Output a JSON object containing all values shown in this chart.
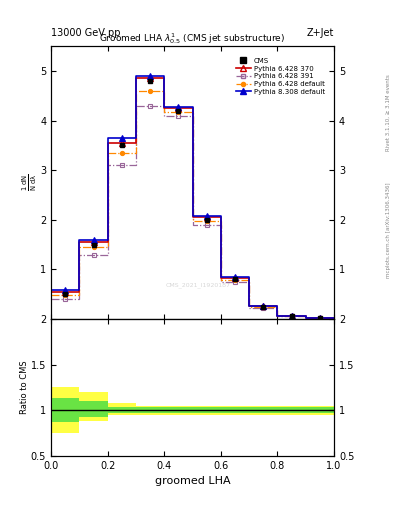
{
  "title": "Groomed LHA $\\lambda^{1}_{0.5}$ (CMS jet substructure)",
  "top_left_label": "13000 GeV pp",
  "top_right_label": "Z+Jet",
  "right_label1": "Rivet 3.1.10, ≥ 3.1M events",
  "right_label2": "mcplots.cern.ch [arXiv:1306.3436]",
  "watermark": "CMS_2021_I1920187",
  "xlabel": "groomed LHA",
  "ylabel_ratio": "Ratio to CMS",
  "x_bins": [
    0.0,
    0.1,
    0.2,
    0.3,
    0.4,
    0.5,
    0.6,
    0.7,
    0.8,
    0.9,
    1.0
  ],
  "x_centers": [
    0.05,
    0.15,
    0.25,
    0.35,
    0.45,
    0.55,
    0.65,
    0.75,
    0.85,
    0.95
  ],
  "cms_data_x": [
    0.05,
    0.15,
    0.25,
    0.35,
    0.45,
    0.55,
    0.65,
    0.75,
    0.85,
    0.95
  ],
  "cms_data_y_raw": [
    0.5,
    1.5,
    3.5,
    4.8,
    4.2,
    2.0,
    0.8,
    0.25,
    0.06,
    0.015
  ],
  "pythia6_370_y": [
    0.55,
    1.55,
    3.55,
    4.85,
    4.25,
    2.05,
    0.82,
    0.26,
    0.065,
    0.016
  ],
  "pythia6_391_y": [
    0.4,
    1.3,
    3.1,
    4.3,
    4.1,
    1.9,
    0.75,
    0.23,
    0.058,
    0.014
  ],
  "pythia6_default_y": [
    0.48,
    1.45,
    3.35,
    4.6,
    4.18,
    1.98,
    0.79,
    0.245,
    0.062,
    0.015
  ],
  "pythia8_default_y": [
    0.58,
    1.6,
    3.65,
    4.9,
    4.28,
    2.08,
    0.84,
    0.27,
    0.068,
    0.017
  ],
  "ratio_yellow_lo": [
    0.75,
    0.88,
    0.95,
    0.95,
    0.95,
    0.95,
    0.95,
    0.95,
    0.95,
    0.95
  ],
  "ratio_yellow_hi": [
    1.25,
    1.2,
    1.08,
    1.05,
    1.05,
    1.05,
    1.05,
    1.05,
    1.05,
    1.05
  ],
  "ratio_green_lo": [
    0.87,
    0.93,
    0.97,
    0.97,
    0.97,
    0.97,
    0.97,
    0.97,
    0.97,
    0.97
  ],
  "ratio_green_hi": [
    1.13,
    1.1,
    1.04,
    1.03,
    1.03,
    1.03,
    1.03,
    1.03,
    1.03,
    1.03
  ],
  "color_p6_370": "#cc0000",
  "color_p6_391": "#996699",
  "color_p6_def": "#ff8800",
  "color_p8_def": "#0000cc",
  "color_cms": "#000000",
  "color_yellow": "#ffff44",
  "color_green": "#44dd44",
  "ylim_main": [
    0.0,
    5.5
  ],
  "ylim_ratio": [
    0.5,
    2.0
  ],
  "xlim": [
    0.0,
    1.0
  ],
  "yticks_main": [
    1,
    2,
    3,
    4,
    5
  ],
  "yticks_ratio": [
    0.5,
    1.0,
    1.5,
    2.0
  ]
}
